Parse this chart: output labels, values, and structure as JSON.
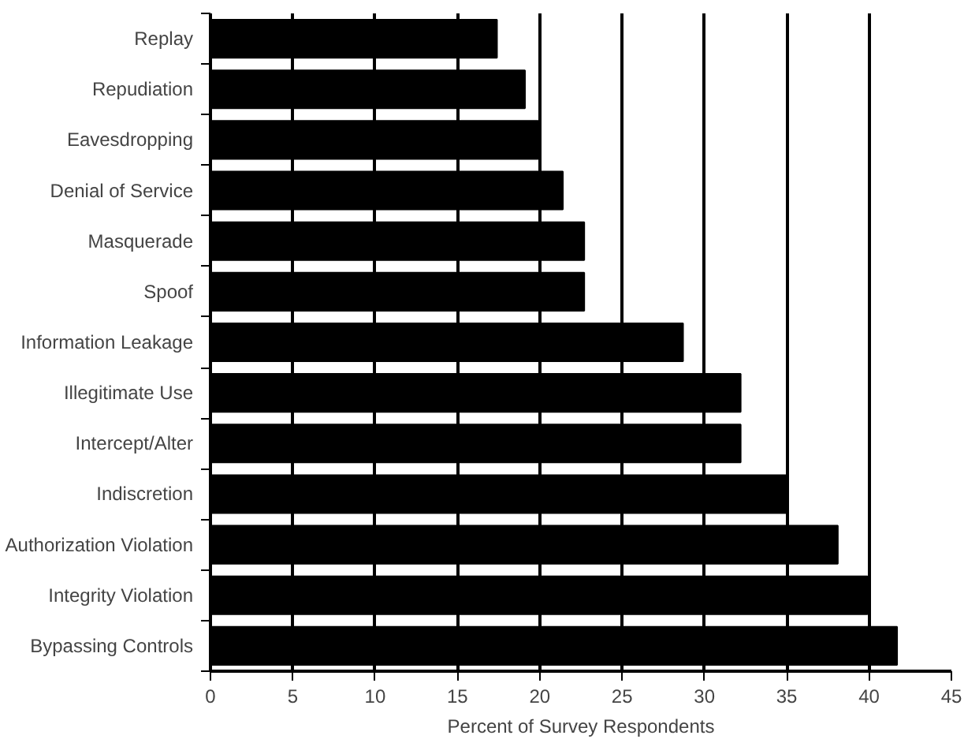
{
  "chart_data": {
    "type": "bar",
    "orientation": "horizontal",
    "xlabel": "Percent of Survey Respondents",
    "categories": [
      "Replay",
      "Repudiation",
      "Eavesdropping",
      "Denial of Service",
      "Masquerade",
      "Spoof",
      "Information Leakage",
      "Illegitimate Use",
      "Intercept/Alter",
      "Indiscretion",
      "Authorization Violation",
      "Integrity Violation",
      "Bypassing Controls"
    ],
    "values": [
      17.4,
      19.1,
      19.9,
      21.4,
      22.7,
      22.7,
      28.7,
      32.2,
      32.2,
      35.0,
      38.1,
      39.9,
      41.7
    ],
    "color": "#000000",
    "xlim": [
      0,
      45
    ],
    "xticks": [
      0,
      5,
      10,
      15,
      20,
      25,
      30,
      35,
      40,
      45
    ],
    "grid": "x"
  }
}
